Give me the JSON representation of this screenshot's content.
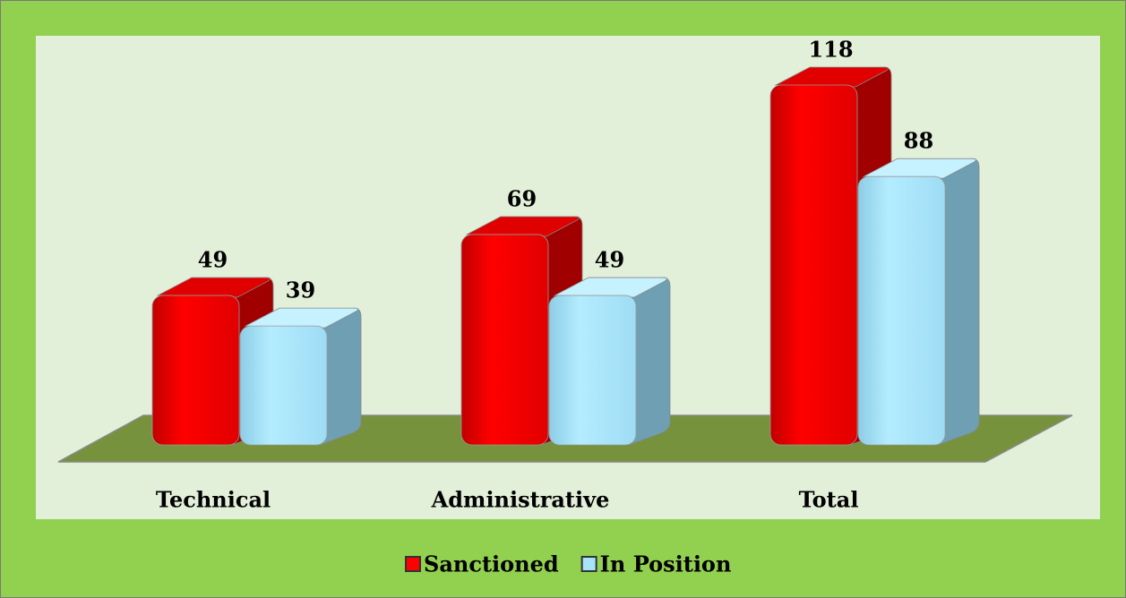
{
  "chart_data": {
    "type": "bar3d",
    "categories": [
      "Technical",
      "Administrative",
      "Total"
    ],
    "series": [
      {
        "name": "Sanctioned",
        "color": "#ff0000",
        "values": [
          49,
          69,
          118
        ]
      },
      {
        "name": "In Position",
        "color": "#a6e4fb",
        "values": [
          39,
          49,
          88
        ]
      }
    ],
    "legend": "bottom"
  }
}
